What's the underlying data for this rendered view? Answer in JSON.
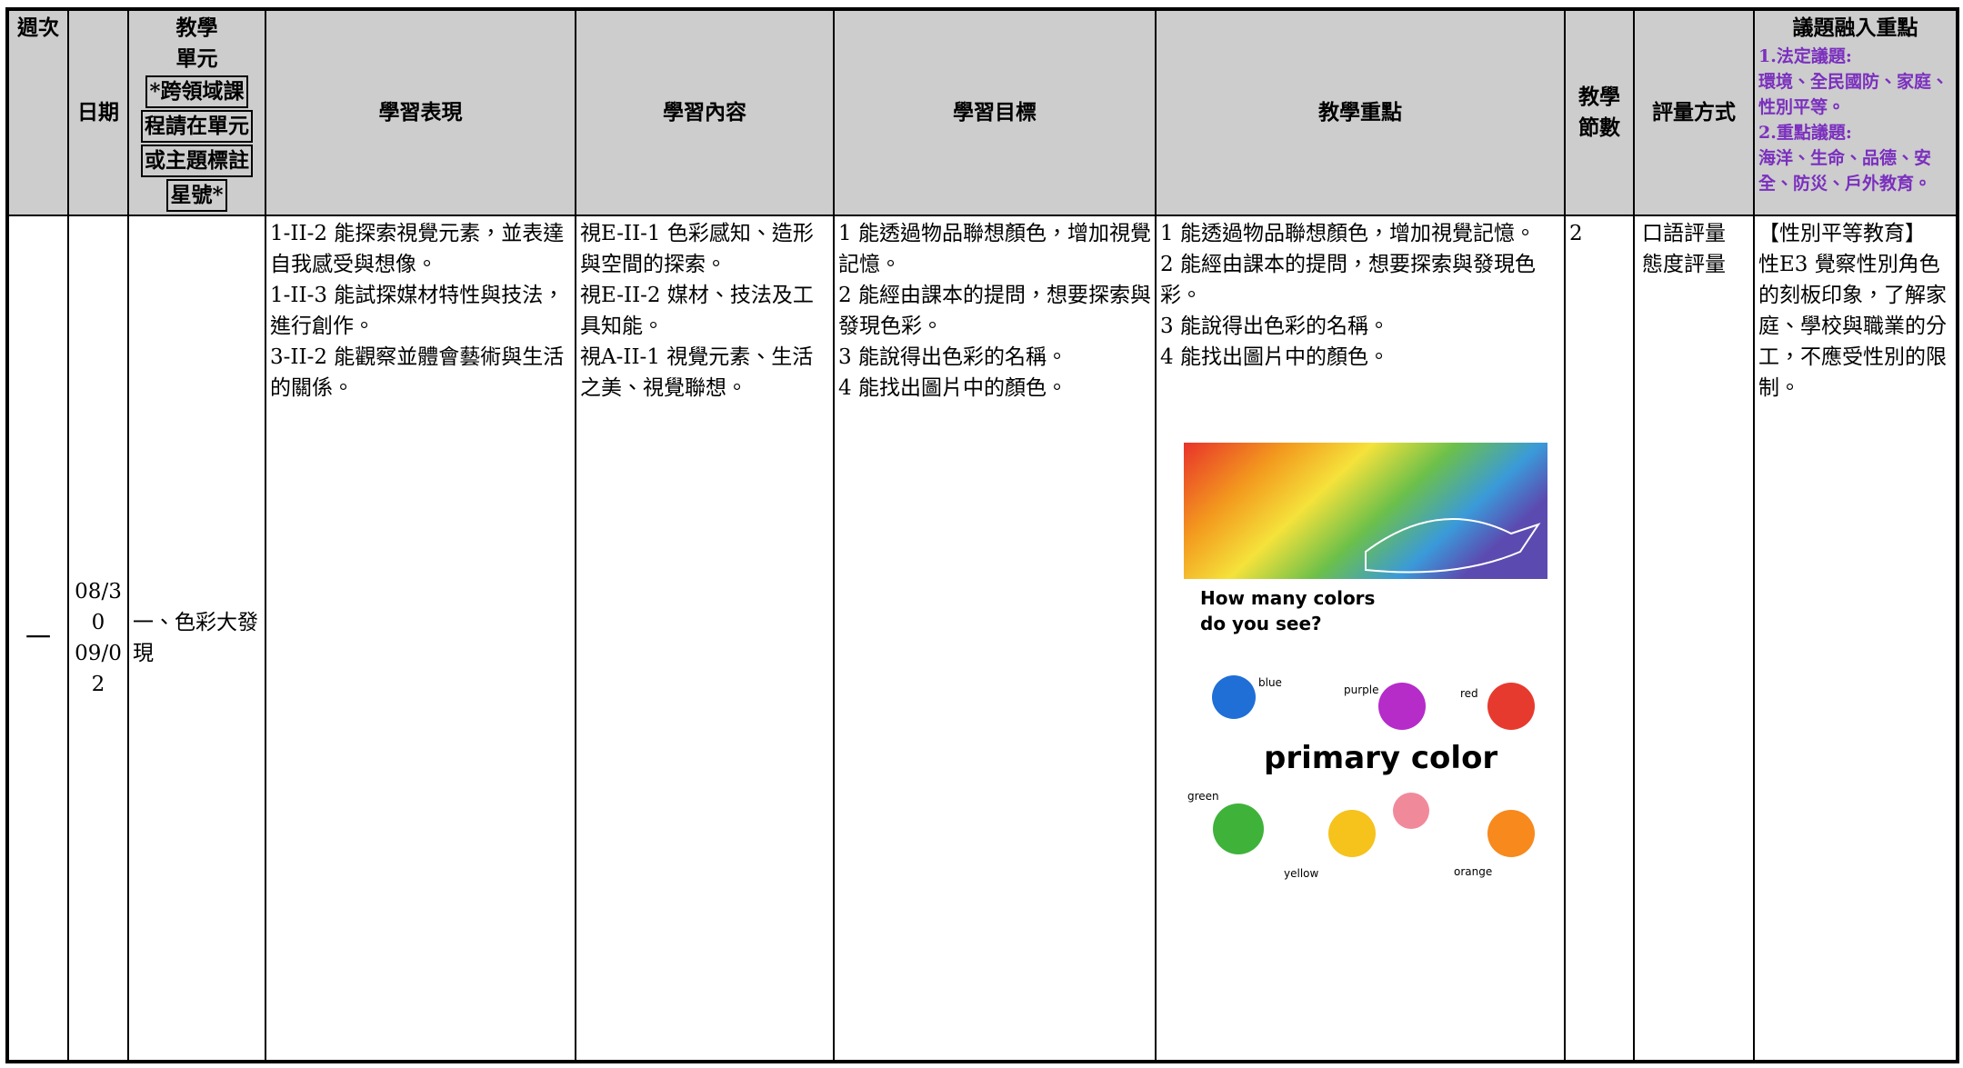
{
  "header": {
    "week": "週次",
    "date": "日期",
    "unit": {
      "title": [
        "教學",
        "單元"
      ],
      "boxed": [
        "*跨領域課",
        "程請在單元",
        "或主題標註",
        "星號*"
      ]
    },
    "performance": "學習表現",
    "content": "學習內容",
    "objectives": "學習目標",
    "focus": "教學重點",
    "periods": "教學節數",
    "assessment": "評量方式",
    "issues": {
      "title": "議題融入重點",
      "lines": [
        "1.法定議題:",
        "環境、全民國防、家庭、性別平等。",
        "2.重點議題:",
        "海洋、生命、品德、安全、防災、戶外教育。"
      ]
    }
  },
  "rows": [
    {
      "week": "一",
      "date": [
        "08/30",
        "09/02"
      ],
      "unit": "一、色彩大發現",
      "performance": [
        "1-II-2 能探索視覺元素，並表達自我感受與想像。",
        "1-II-3 能試探媒材特性與技法，進行創作。",
        "3-II-2 能觀察並體會藝術與生活的關係。"
      ],
      "content": [
        "視E-II-1 色彩感知、造形與空間的探索。",
        "視E-II-2 媒材、技法及工具知能。",
        "視A-II-1 視覺元素、生活之美、視覺聯想。"
      ],
      "objectives": [
        "1 能透過物品聯想顏色，增加視覺記憶。",
        "2 能經由課本的提問，想要探索與發現色彩。",
        "3 能說得出色彩的名稱。",
        "4 能找出圖片中的顏色。"
      ],
      "focus": [
        "1 能透過物品聯想顏色，增加視覺記憶。",
        "2 能經由課本的提問，想要探索與發現色彩。",
        "3 能說得出色彩的名稱。",
        "4 能找出圖片中的顏色。"
      ],
      "image": {
        "question": [
          "How many colors",
          "do you see?"
        ],
        "caption": "primary color",
        "colors": [
          "blue",
          "purple",
          "red",
          "green",
          "yellow",
          "orange"
        ]
      },
      "periods": "2",
      "assessment": [
        "口語評量",
        "態度評量"
      ],
      "issues": [
        "【性別平等教育】",
        "性E3 覺察性別角色的刻板印象，了解家庭、學校與職業的分工，不應受性別的限制。"
      ]
    }
  ]
}
